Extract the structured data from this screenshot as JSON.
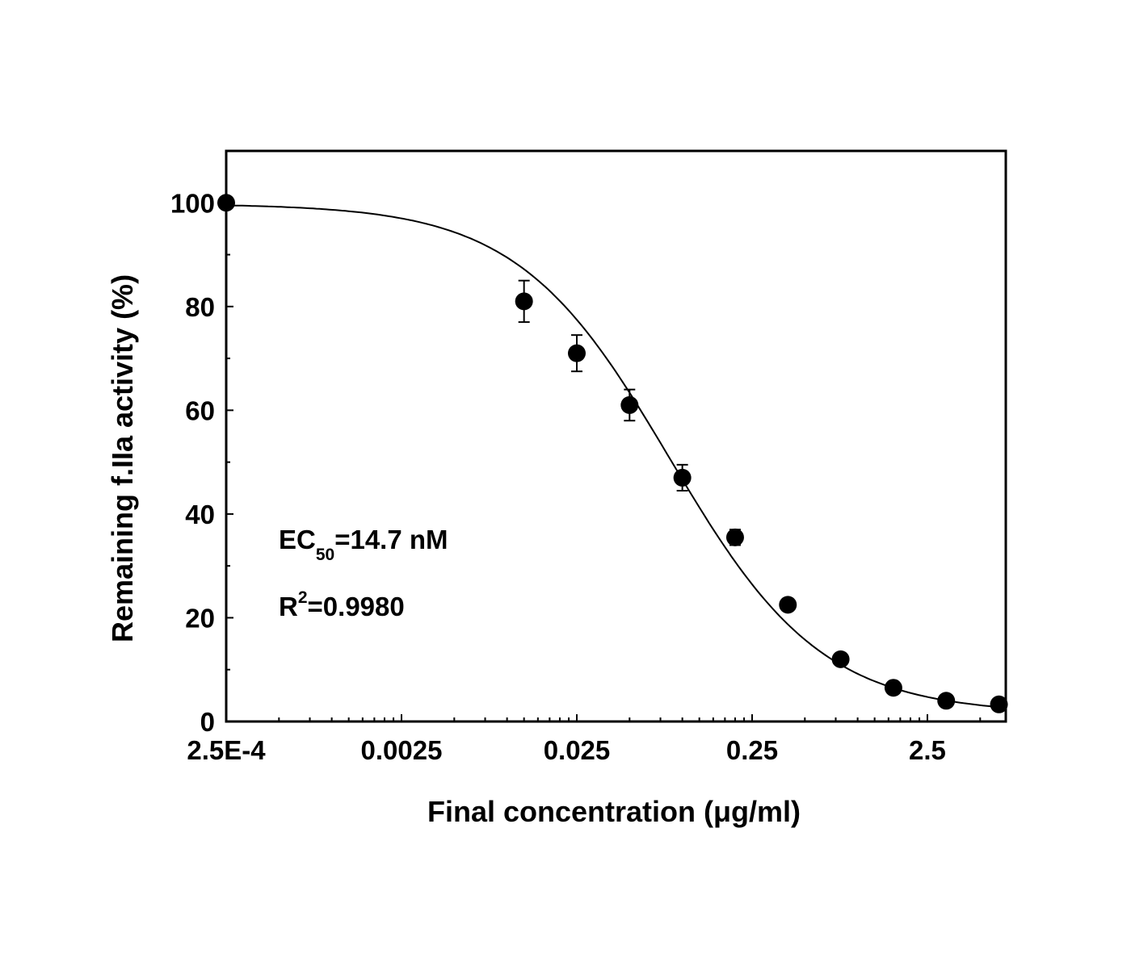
{
  "chart_data": {
    "type": "scatter",
    "title": "",
    "xlabel": "Final concentration (μg/ml)",
    "ylabel": "Remaining f.IIa activity (%)",
    "x_scale": "log",
    "xlim": [
      0.00025,
      7
    ],
    "ylim": [
      0,
      110
    ],
    "x_ticks": [
      {
        "value": 0.00025,
        "label": "2.5E-4"
      },
      {
        "value": 0.0025,
        "label": "0.0025"
      },
      {
        "value": 0.025,
        "label": "0.025"
      },
      {
        "value": 0.25,
        "label": "0.25"
      },
      {
        "value": 2.5,
        "label": "2.5"
      }
    ],
    "y_ticks": [
      {
        "value": 0,
        "label": "0"
      },
      {
        "value": 20,
        "label": "20"
      },
      {
        "value": 40,
        "label": "40"
      },
      {
        "value": 60,
        "label": "60"
      },
      {
        "value": 80,
        "label": "80"
      },
      {
        "value": 100,
        "label": "100"
      }
    ],
    "grid": false,
    "legend": "none",
    "series": [
      {
        "points": [
          {
            "x": 0.00025,
            "y": 100,
            "err": 0
          },
          {
            "x": 0.0125,
            "y": 81,
            "err": 4
          },
          {
            "x": 0.025,
            "y": 71,
            "err": 3.5
          },
          {
            "x": 0.05,
            "y": 61,
            "err": 3
          },
          {
            "x": 0.1,
            "y": 47,
            "err": 2.5
          },
          {
            "x": 0.2,
            "y": 35.5,
            "err": 1.5
          },
          {
            "x": 0.4,
            "y": 22.5,
            "err": 1
          },
          {
            "x": 0.8,
            "y": 12,
            "err": 1
          },
          {
            "x": 1.6,
            "y": 6.5,
            "err": 0.5
          },
          {
            "x": 3.2,
            "y": 4,
            "err": 0.5
          },
          {
            "x": 6.4,
            "y": 3.3,
            "err": 0.3
          }
        ]
      }
    ],
    "fit_curve": {
      "model": "4PL",
      "top": 99.8,
      "bottom": 1.5,
      "ec50": 0.085,
      "hill": 1.0
    },
    "annotations": {
      "ec50_prefix": "EC",
      "ec50_sub": "50",
      "ec50_value": "=14.7 nM",
      "r2_prefix": "R",
      "r2_sup": "2",
      "r2_value": "=0.9980"
    },
    "colors": {
      "ink": "#000000",
      "background": "#ffffff"
    }
  }
}
